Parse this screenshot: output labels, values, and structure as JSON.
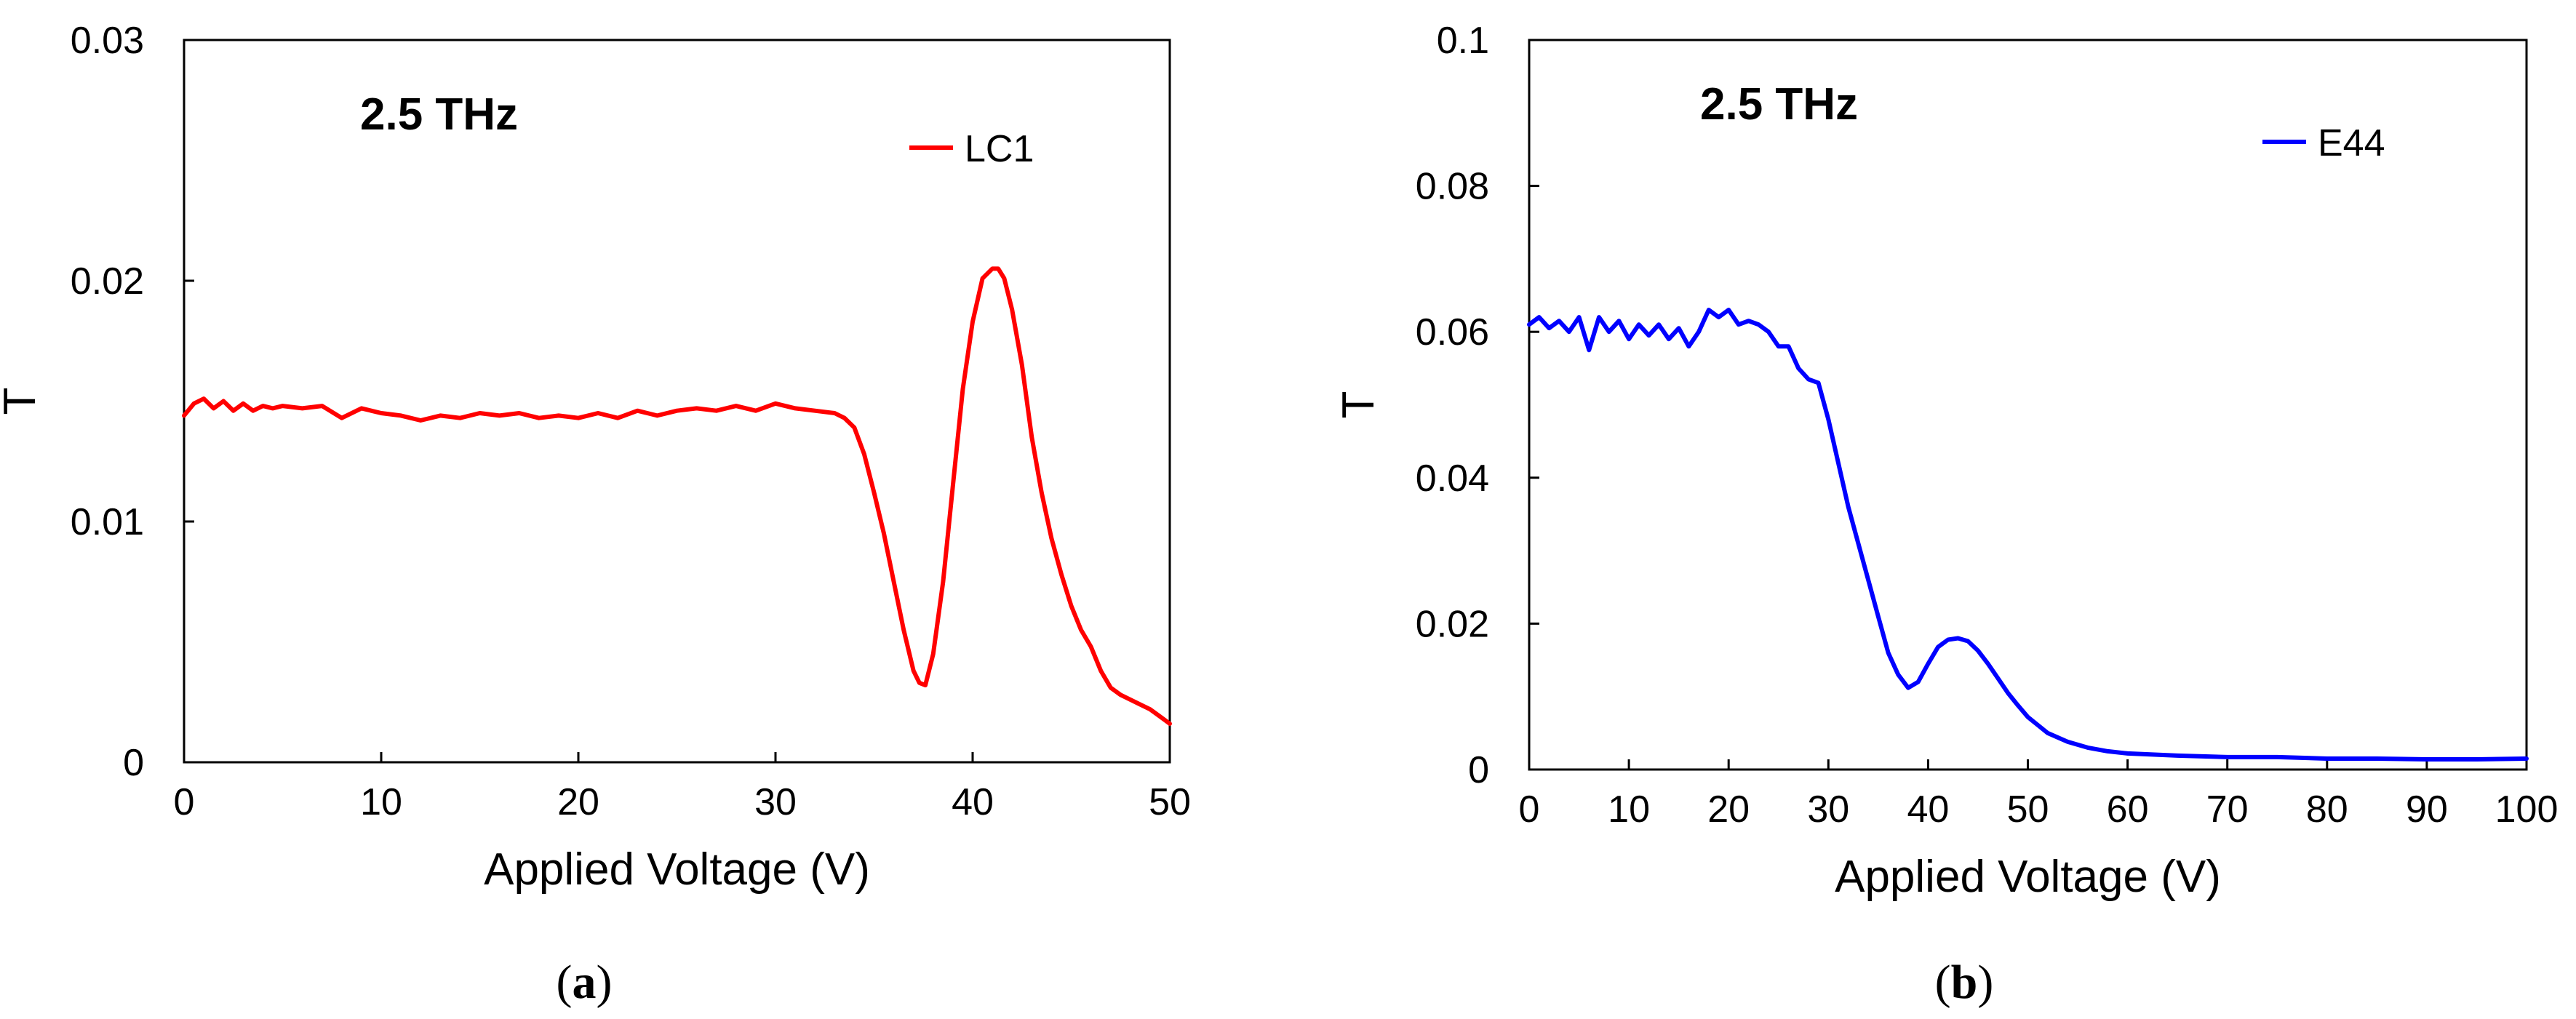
{
  "chart_data": [
    {
      "type": "line",
      "panel": "a",
      "caption_open": "(",
      "caption_letter": "a",
      "caption_close": ")",
      "annotation": "2.5 THz",
      "xlabel": "Applied Voltage (V)",
      "ylabel": "T",
      "xlim": [
        0,
        50
      ],
      "ylim": [
        0,
        0.03
      ],
      "xticks": [
        "0",
        "10",
        "20",
        "30",
        "40",
        "50"
      ],
      "xtick_values": [
        0,
        10,
        20,
        30,
        40,
        50
      ],
      "yticks": [
        "0",
        "0.01",
        "0.02",
        "0.03"
      ],
      "ytick_values": [
        0,
        0.01,
        0.02,
        0.03
      ],
      "grid": false,
      "legend_position": "top-right",
      "series": [
        {
          "name": "LC1",
          "color": "#ff0000",
          "x": [
            0,
            0.5,
            1,
            1.5,
            2,
            2.5,
            3,
            3.5,
            4,
            4.5,
            5,
            6,
            7,
            8,
            9,
            10,
            11,
            12,
            13,
            14,
            15,
            16,
            17,
            18,
            19,
            20,
            21,
            22,
            23,
            24,
            25,
            26,
            27,
            28,
            29,
            30,
            31,
            32,
            33,
            33.5,
            34,
            34.5,
            35,
            35.5,
            36,
            36.5,
            37,
            37.3,
            37.6,
            38,
            38.5,
            39,
            39.5,
            40,
            40.5,
            41,
            41.3,
            41.6,
            42,
            42.5,
            43,
            43.5,
            44,
            44.5,
            45,
            45.5,
            46,
            46.5,
            47,
            47.5,
            48,
            48.5,
            49,
            49.5,
            50
          ],
          "y": [
            0.0144,
            0.0149,
            0.0151,
            0.0147,
            0.015,
            0.0146,
            0.0149,
            0.0146,
            0.0148,
            0.0147,
            0.0148,
            0.0147,
            0.0148,
            0.0143,
            0.0147,
            0.0145,
            0.0144,
            0.0142,
            0.0144,
            0.0143,
            0.0145,
            0.0144,
            0.0145,
            0.0143,
            0.0144,
            0.0143,
            0.0145,
            0.0143,
            0.0146,
            0.0144,
            0.0146,
            0.0147,
            0.0146,
            0.0148,
            0.0146,
            0.0149,
            0.0147,
            0.0146,
            0.0145,
            0.0143,
            0.0139,
            0.0128,
            0.0112,
            0.0095,
            0.0075,
            0.0055,
            0.0038,
            0.0033,
            0.0032,
            0.0045,
            0.0075,
            0.0115,
            0.0155,
            0.0183,
            0.0201,
            0.0205,
            0.0205,
            0.0201,
            0.0188,
            0.0165,
            0.0135,
            0.0112,
            0.0093,
            0.0078,
            0.0065,
            0.0055,
            0.0048,
            0.0038,
            0.0031,
            0.0028,
            0.0026,
            0.0024,
            0.0022,
            0.0019,
            0.0016
          ]
        }
      ]
    },
    {
      "type": "line",
      "panel": "b",
      "caption_open": "(",
      "caption_letter": "b",
      "caption_close": ")",
      "annotation": "2.5 THz",
      "xlabel": "Applied Voltage (V)",
      "ylabel": "T",
      "xlim": [
        0,
        100
      ],
      "ylim": [
        0,
        0.1
      ],
      "xticks": [
        "0",
        "10",
        "20",
        "30",
        "40",
        "50",
        "60",
        "70",
        "80",
        "90",
        "100"
      ],
      "xtick_values": [
        0,
        10,
        20,
        30,
        40,
        50,
        60,
        70,
        80,
        90,
        100
      ],
      "yticks": [
        "0",
        "0.02",
        "0.04",
        "0.06",
        "0.08",
        "0.1"
      ],
      "ytick_values": [
        0,
        0.02,
        0.04,
        0.06,
        0.08,
        0.1
      ],
      "grid": false,
      "legend_position": "top-right",
      "series": [
        {
          "name": "E44",
          "color": "#0000ff",
          "x": [
            0,
            1,
            2,
            3,
            4,
            5,
            6,
            7,
            8,
            9,
            10,
            11,
            12,
            13,
            14,
            15,
            16,
            17,
            18,
            19,
            20,
            21,
            22,
            23,
            24,
            25,
            26,
            27,
            28,
            29,
            30,
            31,
            32,
            33,
            34,
            35,
            36,
            37,
            38,
            39,
            40,
            41,
            42,
            43,
            44,
            45,
            46,
            47,
            48,
            49,
            50,
            52,
            54,
            56,
            58,
            60,
            65,
            70,
            75,
            80,
            85,
            90,
            95,
            100
          ],
          "y": [
            0.061,
            0.062,
            0.0605,
            0.0615,
            0.06,
            0.062,
            0.0575,
            0.062,
            0.06,
            0.0615,
            0.059,
            0.061,
            0.0595,
            0.061,
            0.059,
            0.0605,
            0.058,
            0.06,
            0.063,
            0.062,
            0.063,
            0.061,
            0.0615,
            0.061,
            0.06,
            0.058,
            0.058,
            0.055,
            0.0535,
            0.053,
            0.048,
            0.042,
            0.036,
            0.031,
            0.026,
            0.021,
            0.016,
            0.013,
            0.0112,
            0.012,
            0.0145,
            0.0168,
            0.0178,
            0.018,
            0.0176,
            0.0163,
            0.0145,
            0.0125,
            0.0105,
            0.0088,
            0.0072,
            0.005,
            0.0038,
            0.003,
            0.0025,
            0.0022,
            0.0019,
            0.0017,
            0.0017,
            0.0015,
            0.0015,
            0.0014,
            0.0014,
            0.0015
          ]
        }
      ]
    }
  ]
}
